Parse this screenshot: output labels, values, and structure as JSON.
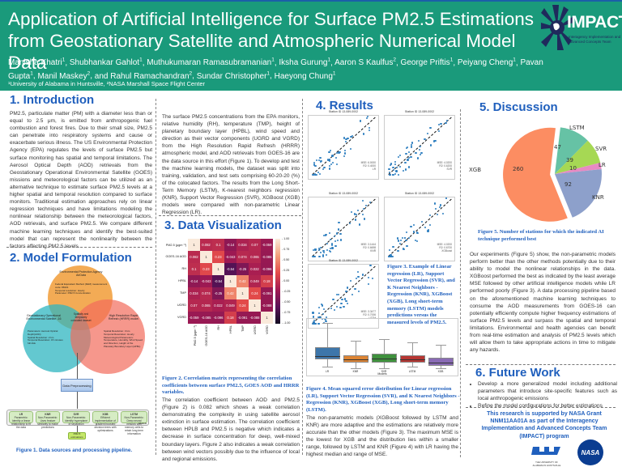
{
  "header": {
    "title_line1": "Application of Artificial Intelligence for Surface PM2.5 Estimations",
    "title_line2": "from Geostationary Satellite and Atmospheric Numerical Model Data",
    "authors": [
      {
        "name": "Manisha Khatri",
        "aff": "1"
      },
      {
        "name": "Shubhankar Gahlot",
        "aff": "1"
      },
      {
        "name": "Muthukumaran Ramasubramanian",
        "aff": "1"
      },
      {
        "name": "Iksha Gurung",
        "aff": "1"
      },
      {
        "name": "Aaron S Kaulfus",
        "aff": "2"
      },
      {
        "name": "George Priftis",
        "aff": "1"
      },
      {
        "name": "Peiyang Cheng",
        "aff": "1"
      },
      {
        "name": "Pavan Gupta",
        "aff": "1"
      },
      {
        "name": "Manil Maskey",
        "aff": "2"
      },
      {
        "name": "and Rahul Ramachandran",
        "aff": "2"
      },
      {
        "name": "Sundar Christopher",
        "aff": "1"
      },
      {
        "name": "Haeyong Chung",
        "aff": "1"
      }
    ],
    "affiliations": "¹University of Alabama in Huntsville, ²NASA Marshall Space Flight Center",
    "logo_text": "IMPACT",
    "logo_subtext": "Interagency Implementation and Advanced Concepts Team"
  },
  "introduction": {
    "heading": "1. Introduction",
    "text": "PM2.5, particulate matter (PM) with a diameter less than or equal to 2.5 μm, is emitted from anthropogenic fuel combustion and forest fires. Due to their small size, PM2.5 can penetrate into respiratory systems and cause or exacerbate serious illness. The US Environmental Protection Agency (EPA) regulates the levels of surface PM2.5 but surface monitoring has spatial and temporal limitations. The Aerosol Optical Depth (AOD) retrievals from the Geostationary Operational Environmental Satellite (GOES) missions and meteorological factors can be utilized as an alternative technique to estimate surface PM2.5 levels at a higher spatial and temporal resolution compared to surface monitors. Traditional estimation approaches rely on linear regression techniques and have limitations modeling the nonlinear relationship between the meteorological factors, AOD retrievals, and surface PM2.5. We compare different machine learning techniques and identify the best-suited model that can represent the nonlinearity between the factors affecting PM2.5 levels."
  },
  "model_formulation": {
    "heading": "2. Model Formulation",
    "venn": {
      "epa": {
        "title": "Environmental Protection Agency AirData",
        "bullets": [
          "Federal Equivalent Method (FEM) measurement code: 88101",
          "Temporal resolution: Hourly",
          "Parameter: PM2.5 Concentration"
        ]
      },
      "goes": {
        "title": "Geostationary Operational Environmental Satellite -16",
        "bullets": [
          "Parameters: Aerosol Optical Depth(AOD)",
          "Spatial Resolution: 2 km",
          "Temporal Resolution: 15 minutes full disk"
        ]
      },
      "hrrr": {
        "title": "High Resolution Rapid Refresh (HRRR) model",
        "bullets": [
          "Spatial Resolution: 3 km",
          "Temporal Resolution: Hourly",
          "Meteorological Parameters: Temperature, Humidity, Wind Speed and Direction, Height of the Planetary Boundary Layer (HPBL)"
        ]
      },
      "center": "Spatially and temporally colocated dataset"
    },
    "preprocessing": "Data Preprocessing",
    "models_label": "Models",
    "models": [
      {
        "name": "LR",
        "desc": "Parametric: Identify a linear relationship to fit the data"
      },
      {
        "name": "KNR",
        "desc": "Non-Parametric: Uses feature similarity to make predictions"
      },
      {
        "name": "SVR",
        "desc": "Non-Parametric: Identify hyperplane of separation"
      },
      {
        "name": "XGB",
        "desc": "Efficient implementation of gradient boosted decision trees with optimizations"
      },
      {
        "name": "LSTM",
        "desc": "Non-Parametric: Deep neural network with memory cells to retain long term information"
      }
    ],
    "output": "PM2.5 estimations",
    "caption": "Figure 1. Data sources and processing pipeline."
  },
  "data_sources": {
    "text": "The surface PM2.5 concentrations from the EPA monitors, relative humidity (RH), temperature (TMP), height of planetary boundary layer (HPBL), wind speed and direction as their vector components (UGRD and VGRD) from the High Resolution Rapid Refresh (HRRR) atmospheric model, and AOD retrievals from GOES-16 are the data source in this effort (Figure 1). To develop and test the machine learning models, the dataset was split into training, validation, and test sets comprising 60-20-20 (%) of the colocated factors. The results from the Long Short-Term Memory (LSTM), K-nearest neighbors regression (KNR), Support Vector Regression (SVR), XGBoost (XGB) models were compared with non-parametric Linear Regression (LR)."
  },
  "data_visualization": {
    "heading": "3. Data Visualization",
    "caption": "Figure 2. Correlation matrix representing the correlation coefficients between surface PM2.5, GOES AOD and HRRR variables.",
    "text": "The correlation coefficient between AOD and PM2.5 (Figure 2) is 0.082 which shows a weak correlation demonstrating the complexity in using satellite aerosol extinction in surface estimation. The correlation coefficient between HPLB and PM2.5 is negative which indicates a decrease in surface concentration for deep, well-mixed boundary layers. Figure 2 also indicates a weak correlation between wind vectors possibly due to the influence of local and regional emissions."
  },
  "results": {
    "heading": "4. Results",
    "scatter_plots": [
      {
        "title": "Station ID 13-089-0002",
        "mse": "MSE: 6.0000",
        "r2": "R2: 0.4000",
        "model": "LR"
      },
      {
        "title": "Station ID 13-089-0002",
        "mse": "MSE: 4.0200",
        "r2": "R2: 0.6200",
        "model": "SVR"
      },
      {
        "title": "Station ID 13-089-0002",
        "mse": "MSE: 3.1444",
        "r2": "R2: 0.6698",
        "model": "KNR"
      },
      {
        "title": "Station ID 13-089-0002",
        "mse": "MSE: 4.0200",
        "r2": "R2: 0.6700",
        "model": "XGBoost"
      },
      {
        "title": "Station ID 13-089-0002",
        "mse": "MSE: 3.3477",
        "r2": "R2: 0.7006",
        "model": "LSTM"
      }
    ],
    "scatter_xlabel": "Observed PM2.5 (μgm⁻³)",
    "scatter_ylabel": "Estimated PM2.5 (μgm⁻³)",
    "caption3": "Figure 3. Example of Linear regression (LR), Support Vector Regression (SVR), and K Nearest Neighbors - Regression (KNR), XGBoost (XGB), Long short-term memory (LSTM) models predictions versus the measured levels of PM2.5.",
    "caption4": "Figure 4. Mean squared error distribution for Linear regression (LR), Support Vector Regression (SVR), and K Nearest Neighbors - Regression (KNR), XGBoost (XGB), Long short-term memory (LSTM).",
    "text": "The non-parametric models (XGBoost followed by LSTM and KNR) are more adaptive and the estimations are relatively more accurate than the other models (Figure 3). The maximum MSE is the lowest for XGB and the distribution lies within a smaller range, followed by LSTM and KNR (Figure 4) with LR having the highest median and range of MSE."
  },
  "discussion": {
    "heading": "5. Discussion",
    "caption": "Figure 5. Number of stations for which the indicated AI technique performed best",
    "text": "Our experiments (Figure 5) show, the non-parametric models perform better than the other methods potentially due to their ability to model the nonlinear relationships in the data. XGBoost performed the best as indicated by the least average MSE followed by other artificial intelligence models while LR performed poorly (Figure 3). A data processing pipeline based on the aforementioned machine learning techniques to consume the AOD measurements from GOES-16 can potentially efficiently compute higher frequency estimations of surface PM2.5 levels and surpass the spatial and temporal limitations. Environmental and health agencies can benefit from real-time estimation and analysis of PM2.5 levels which will allow them to take appropriate actions in time to mitigate any hazards."
  },
  "future_work": {
    "heading": "6. Future Work",
    "items": [
      "Develop a more generalized model including additional parameters that introduce site-specific features such as local anthropogenic emissions",
      "Refine the model configurations for better estimations"
    ]
  },
  "acknowledgement": "This research is supported by NASA Grant NNM11AA01A as part of the Interagency Implementation and Advanced Concepts Team (IMPACT) program",
  "footer_logos": {
    "uah_line1": "THE UNIVERSITY OF",
    "uah_line2": "ALABAMA IN HUNTSVILLE",
    "nasa": "NASA"
  },
  "chart_data": [
    {
      "type": "heatmap",
      "title": "Correlation matrix",
      "labels": [
        "PM2.5 (μgm⁻³)",
        "GOES-16 AOD",
        "RH",
        "HPBL",
        "TMP",
        "UGRD",
        "VGRD"
      ],
      "values": [
        [
          1,
          0.082,
          0.1,
          -0.14,
          0.034,
          0.07,
          -0.059
        ],
        [
          0.082,
          1,
          0.23,
          -0.043,
          0.074,
          0.065,
          -0.085
        ],
        [
          0.1,
          0.23,
          1,
          -0.54,
          -0.25,
          0.022,
          -0.096
        ],
        [
          -0.14,
          -0.043,
          -0.54,
          1,
          0.42,
          0.049,
          0.18
        ],
        [
          0.034,
          0.074,
          -0.25,
          0.42,
          1,
          0.24,
          -0.091
        ],
        [
          0.07,
          0.065,
          0.022,
          0.049,
          0.24,
          1,
          -0.088
        ],
        [
          -0.059,
          -0.085,
          -0.096,
          0.18,
          -0.091,
          -0.088,
          1
        ]
      ],
      "colorbar_ticks": [
        "1.00",
        "0.75",
        "0.50",
        "0.25",
        "0.00",
        "-0.25",
        "-0.50",
        "-0.75",
        "-1.00"
      ],
      "vrange": [
        -1,
        1
      ]
    },
    {
      "type": "scatter",
      "title": "Predicted vs observed PM2.5 (5 models)",
      "series": [
        "LR",
        "SVR",
        "KNR",
        "XGBoost",
        "LSTM"
      ],
      "xlabel": "Observed PM2.5 (μgm⁻³)",
      "ylabel": "Estimated PM2.5 (μgm⁻³)"
    },
    {
      "type": "box",
      "title": "MSE distribution",
      "categories": [
        "LR",
        "KNR",
        "SVR",
        "LSTM",
        "XGB"
      ],
      "xlabel": "Models",
      "ylabel": "Mean Squared Error",
      "boxes": [
        {
          "min": 0.5,
          "q1": 2.0,
          "median": 2.7,
          "q3": 4.5,
          "max": 9.5,
          "color": "#3d76aa"
        },
        {
          "min": 0.2,
          "q1": 1.3,
          "median": 2.0,
          "q3": 2.9,
          "max": 5.8,
          "color": "#dd8433"
        },
        {
          "min": 0.2,
          "q1": 1.4,
          "median": 2.2,
          "q3": 3.1,
          "max": 6.1,
          "color": "#3f913d"
        },
        {
          "min": 0.5,
          "q1": 1.3,
          "median": 2.0,
          "q3": 2.8,
          "max": 5.5,
          "color": "#b73632"
        },
        {
          "min": 0.2,
          "q1": 0.7,
          "median": 1.4,
          "q3": 2.3,
          "max": 5.0,
          "color": "#8a6bb5"
        }
      ]
    },
    {
      "type": "pie",
      "title": "Number of stations for which the indicated AI technique performed best",
      "categories": [
        "XGB",
        "LSTM",
        "SVR",
        "LR",
        "KNR"
      ],
      "values": [
        260,
        47,
        39,
        10,
        92
      ],
      "colors": [
        "#fc8d62",
        "#66c2a5",
        "#a6d854",
        "#e78ac3",
        "#8da0cb"
      ]
    }
  ]
}
